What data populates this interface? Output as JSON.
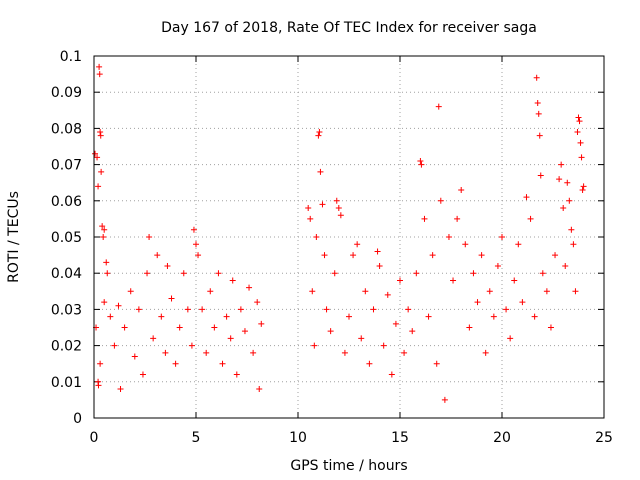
{
  "chart_data": {
    "type": "scatter",
    "title": "Day 167 of 2018, Rate Of TEC Index for receiver saga",
    "xlabel": "GPS time / hours",
    "ylabel": "ROTI / TECUs",
    "xlim": [
      0,
      25
    ],
    "ylim": [
      0,
      0.1
    ],
    "x_ticks": [
      0,
      5,
      10,
      15,
      20,
      25
    ],
    "x_tick_labels": [
      "0",
      "5",
      "10",
      "15",
      "20",
      "25"
    ],
    "y_ticks": [
      0,
      0.01,
      0.02,
      0.03,
      0.04,
      0.05,
      0.06,
      0.07,
      0.08,
      0.09,
      0.1
    ],
    "y_tick_labels": [
      "0",
      "0.01",
      "0.02",
      "0.03",
      "0.04",
      "0.05",
      "0.06",
      "0.07",
      "0.08",
      "0.09",
      "0.1"
    ],
    "grid": true,
    "marker": "+",
    "marker_color": "#ff0000",
    "series": [
      {
        "name": "ROTI",
        "points": [
          [
            0.05,
            0.073
          ],
          [
            0.1,
            0.025
          ],
          [
            0.15,
            0.072
          ],
          [
            0.2,
            0.064
          ],
          [
            0.25,
            0.097
          ],
          [
            0.28,
            0.095
          ],
          [
            0.3,
            0.079
          ],
          [
            0.33,
            0.078
          ],
          [
            0.35,
            0.068
          ],
          [
            0.4,
            0.053
          ],
          [
            0.45,
            0.05
          ],
          [
            0.5,
            0.052
          ],
          [
            0.2,
            0.01
          ],
          [
            0.22,
            0.009
          ],
          [
            0.6,
            0.043
          ],
          [
            0.65,
            0.04
          ],
          [
            0.3,
            0.015
          ],
          [
            0.5,
            0.032
          ],
          [
            0.8,
            0.028
          ],
          [
            1.0,
            0.02
          ],
          [
            1.2,
            0.031
          ],
          [
            1.3,
            0.008
          ],
          [
            1.5,
            0.025
          ],
          [
            1.8,
            0.035
          ],
          [
            2.0,
            0.017
          ],
          [
            2.2,
            0.03
          ],
          [
            2.4,
            0.012
          ],
          [
            2.6,
            0.04
          ],
          [
            2.7,
            0.05
          ],
          [
            2.9,
            0.022
          ],
          [
            3.1,
            0.045
          ],
          [
            3.3,
            0.028
          ],
          [
            3.5,
            0.018
          ],
          [
            3.6,
            0.042
          ],
          [
            3.8,
            0.033
          ],
          [
            4.0,
            0.015
          ],
          [
            4.2,
            0.025
          ],
          [
            4.4,
            0.04
          ],
          [
            4.6,
            0.03
          ],
          [
            4.8,
            0.02
          ],
          [
            4.9,
            0.052
          ],
          [
            5.0,
            0.048
          ],
          [
            5.1,
            0.045
          ],
          [
            5.3,
            0.03
          ],
          [
            5.5,
            0.018
          ],
          [
            5.7,
            0.035
          ],
          [
            5.9,
            0.025
          ],
          [
            6.1,
            0.04
          ],
          [
            6.3,
            0.015
          ],
          [
            6.5,
            0.028
          ],
          [
            6.7,
            0.022
          ],
          [
            6.8,
            0.038
          ],
          [
            7.0,
            0.012
          ],
          [
            7.2,
            0.03
          ],
          [
            7.4,
            0.024
          ],
          [
            7.6,
            0.036
          ],
          [
            7.8,
            0.018
          ],
          [
            8.0,
            0.032
          ],
          [
            8.1,
            0.008
          ],
          [
            8.2,
            0.026
          ],
          [
            10.5,
            0.058
          ],
          [
            10.6,
            0.055
          ],
          [
            10.7,
            0.035
          ],
          [
            10.8,
            0.02
          ],
          [
            10.9,
            0.05
          ],
          [
            11.0,
            0.078
          ],
          [
            11.05,
            0.079
          ],
          [
            11.1,
            0.068
          ],
          [
            11.2,
            0.059
          ],
          [
            11.3,
            0.045
          ],
          [
            11.4,
            0.03
          ],
          [
            11.6,
            0.024
          ],
          [
            11.8,
            0.04
          ],
          [
            11.9,
            0.06
          ],
          [
            12.0,
            0.058
          ],
          [
            12.1,
            0.056
          ],
          [
            12.3,
            0.018
          ],
          [
            12.5,
            0.028
          ],
          [
            12.7,
            0.045
          ],
          [
            12.9,
            0.048
          ],
          [
            13.1,
            0.022
          ],
          [
            13.3,
            0.035
          ],
          [
            13.5,
            0.015
          ],
          [
            13.7,
            0.03
          ],
          [
            13.9,
            0.046
          ],
          [
            14.0,
            0.042
          ],
          [
            14.2,
            0.02
          ],
          [
            14.4,
            0.034
          ],
          [
            14.6,
            0.012
          ],
          [
            14.8,
            0.026
          ],
          [
            15.0,
            0.038
          ],
          [
            15.2,
            0.018
          ],
          [
            15.4,
            0.03
          ],
          [
            15.6,
            0.024
          ],
          [
            15.8,
            0.04
          ],
          [
            16.0,
            0.071
          ],
          [
            16.05,
            0.07
          ],
          [
            16.2,
            0.055
          ],
          [
            16.4,
            0.028
          ],
          [
            16.6,
            0.045
          ],
          [
            16.8,
            0.015
          ],
          [
            16.9,
            0.086
          ],
          [
            17.0,
            0.06
          ],
          [
            17.2,
            0.005
          ],
          [
            17.4,
            0.05
          ],
          [
            17.6,
            0.038
          ],
          [
            17.8,
            0.055
          ],
          [
            18.0,
            0.063
          ],
          [
            18.2,
            0.048
          ],
          [
            18.4,
            0.025
          ],
          [
            18.6,
            0.04
          ],
          [
            18.8,
            0.032
          ],
          [
            19.0,
            0.045
          ],
          [
            19.2,
            0.018
          ],
          [
            19.4,
            0.035
          ],
          [
            19.6,
            0.028
          ],
          [
            19.8,
            0.042
          ],
          [
            20.0,
            0.05
          ],
          [
            20.2,
            0.03
          ],
          [
            20.4,
            0.022
          ],
          [
            20.6,
            0.038
          ],
          [
            20.8,
            0.048
          ],
          [
            21.0,
            0.032
          ],
          [
            21.2,
            0.061
          ],
          [
            21.4,
            0.055
          ],
          [
            21.6,
            0.028
          ],
          [
            21.7,
            0.094
          ],
          [
            21.75,
            0.087
          ],
          [
            21.8,
            0.084
          ],
          [
            21.85,
            0.078
          ],
          [
            21.9,
            0.067
          ],
          [
            22.0,
            0.04
          ],
          [
            22.2,
            0.035
          ],
          [
            22.4,
            0.025
          ],
          [
            22.6,
            0.045
          ],
          [
            22.8,
            0.066
          ],
          [
            22.9,
            0.07
          ],
          [
            23.0,
            0.058
          ],
          [
            23.1,
            0.042
          ],
          [
            23.2,
            0.065
          ],
          [
            23.3,
            0.06
          ],
          [
            23.4,
            0.052
          ],
          [
            23.5,
            0.048
          ],
          [
            23.6,
            0.035
          ],
          [
            23.7,
            0.079
          ],
          [
            23.75,
            0.083
          ],
          [
            23.8,
            0.082
          ],
          [
            23.85,
            0.076
          ],
          [
            23.9,
            0.072
          ],
          [
            23.95,
            0.063
          ],
          [
            24.0,
            0.064
          ]
        ]
      }
    ]
  }
}
